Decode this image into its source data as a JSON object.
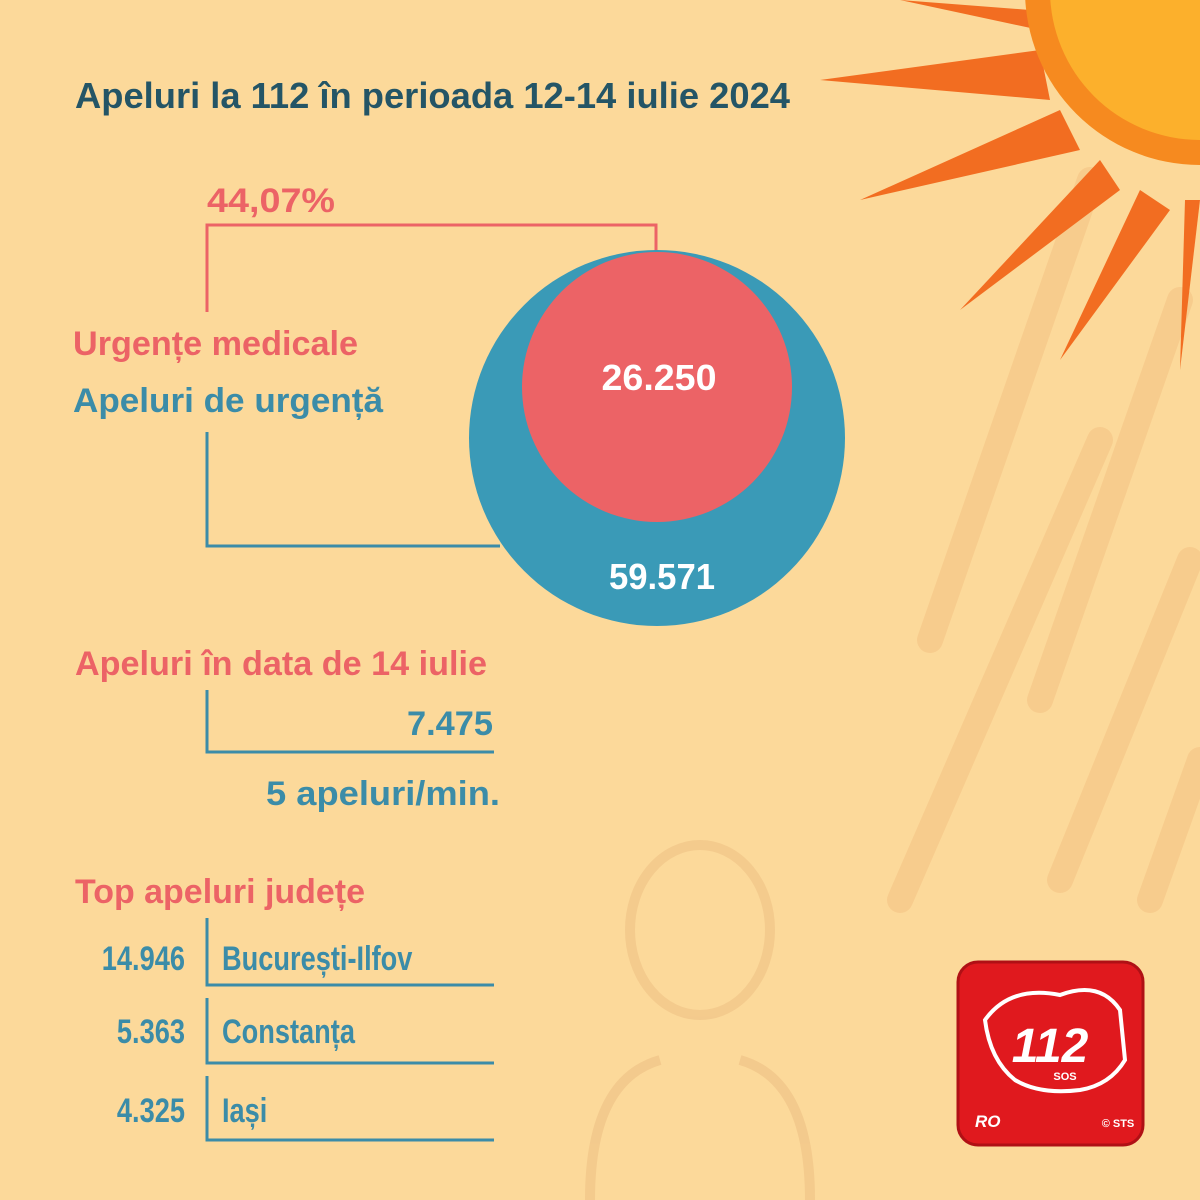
{
  "header": {
    "title": "Apeluri la 112 în perioada 12-14 iulie 2024"
  },
  "summary": {
    "share": "44,07%",
    "medical_label": "Urgențe medicale",
    "emergency_label": "Apeluri de urgență",
    "medical_value": "26.250",
    "emergency_value": "59.571"
  },
  "day": {
    "title": "Apeluri în data de 14 iulie",
    "value": "7.475",
    "rate": "5 apeluri/min."
  },
  "top": {
    "title": "Top apeluri județe",
    "rows": [
      [
        "14.946",
        "București-Ilfov"
      ],
      [
        "5.363",
        "Constanța"
      ],
      [
        "4.325",
        "Iași"
      ]
    ]
  },
  "logo": {
    "number": "112",
    "sos": "SOS",
    "country": "RO",
    "credit": "© STS"
  }
}
